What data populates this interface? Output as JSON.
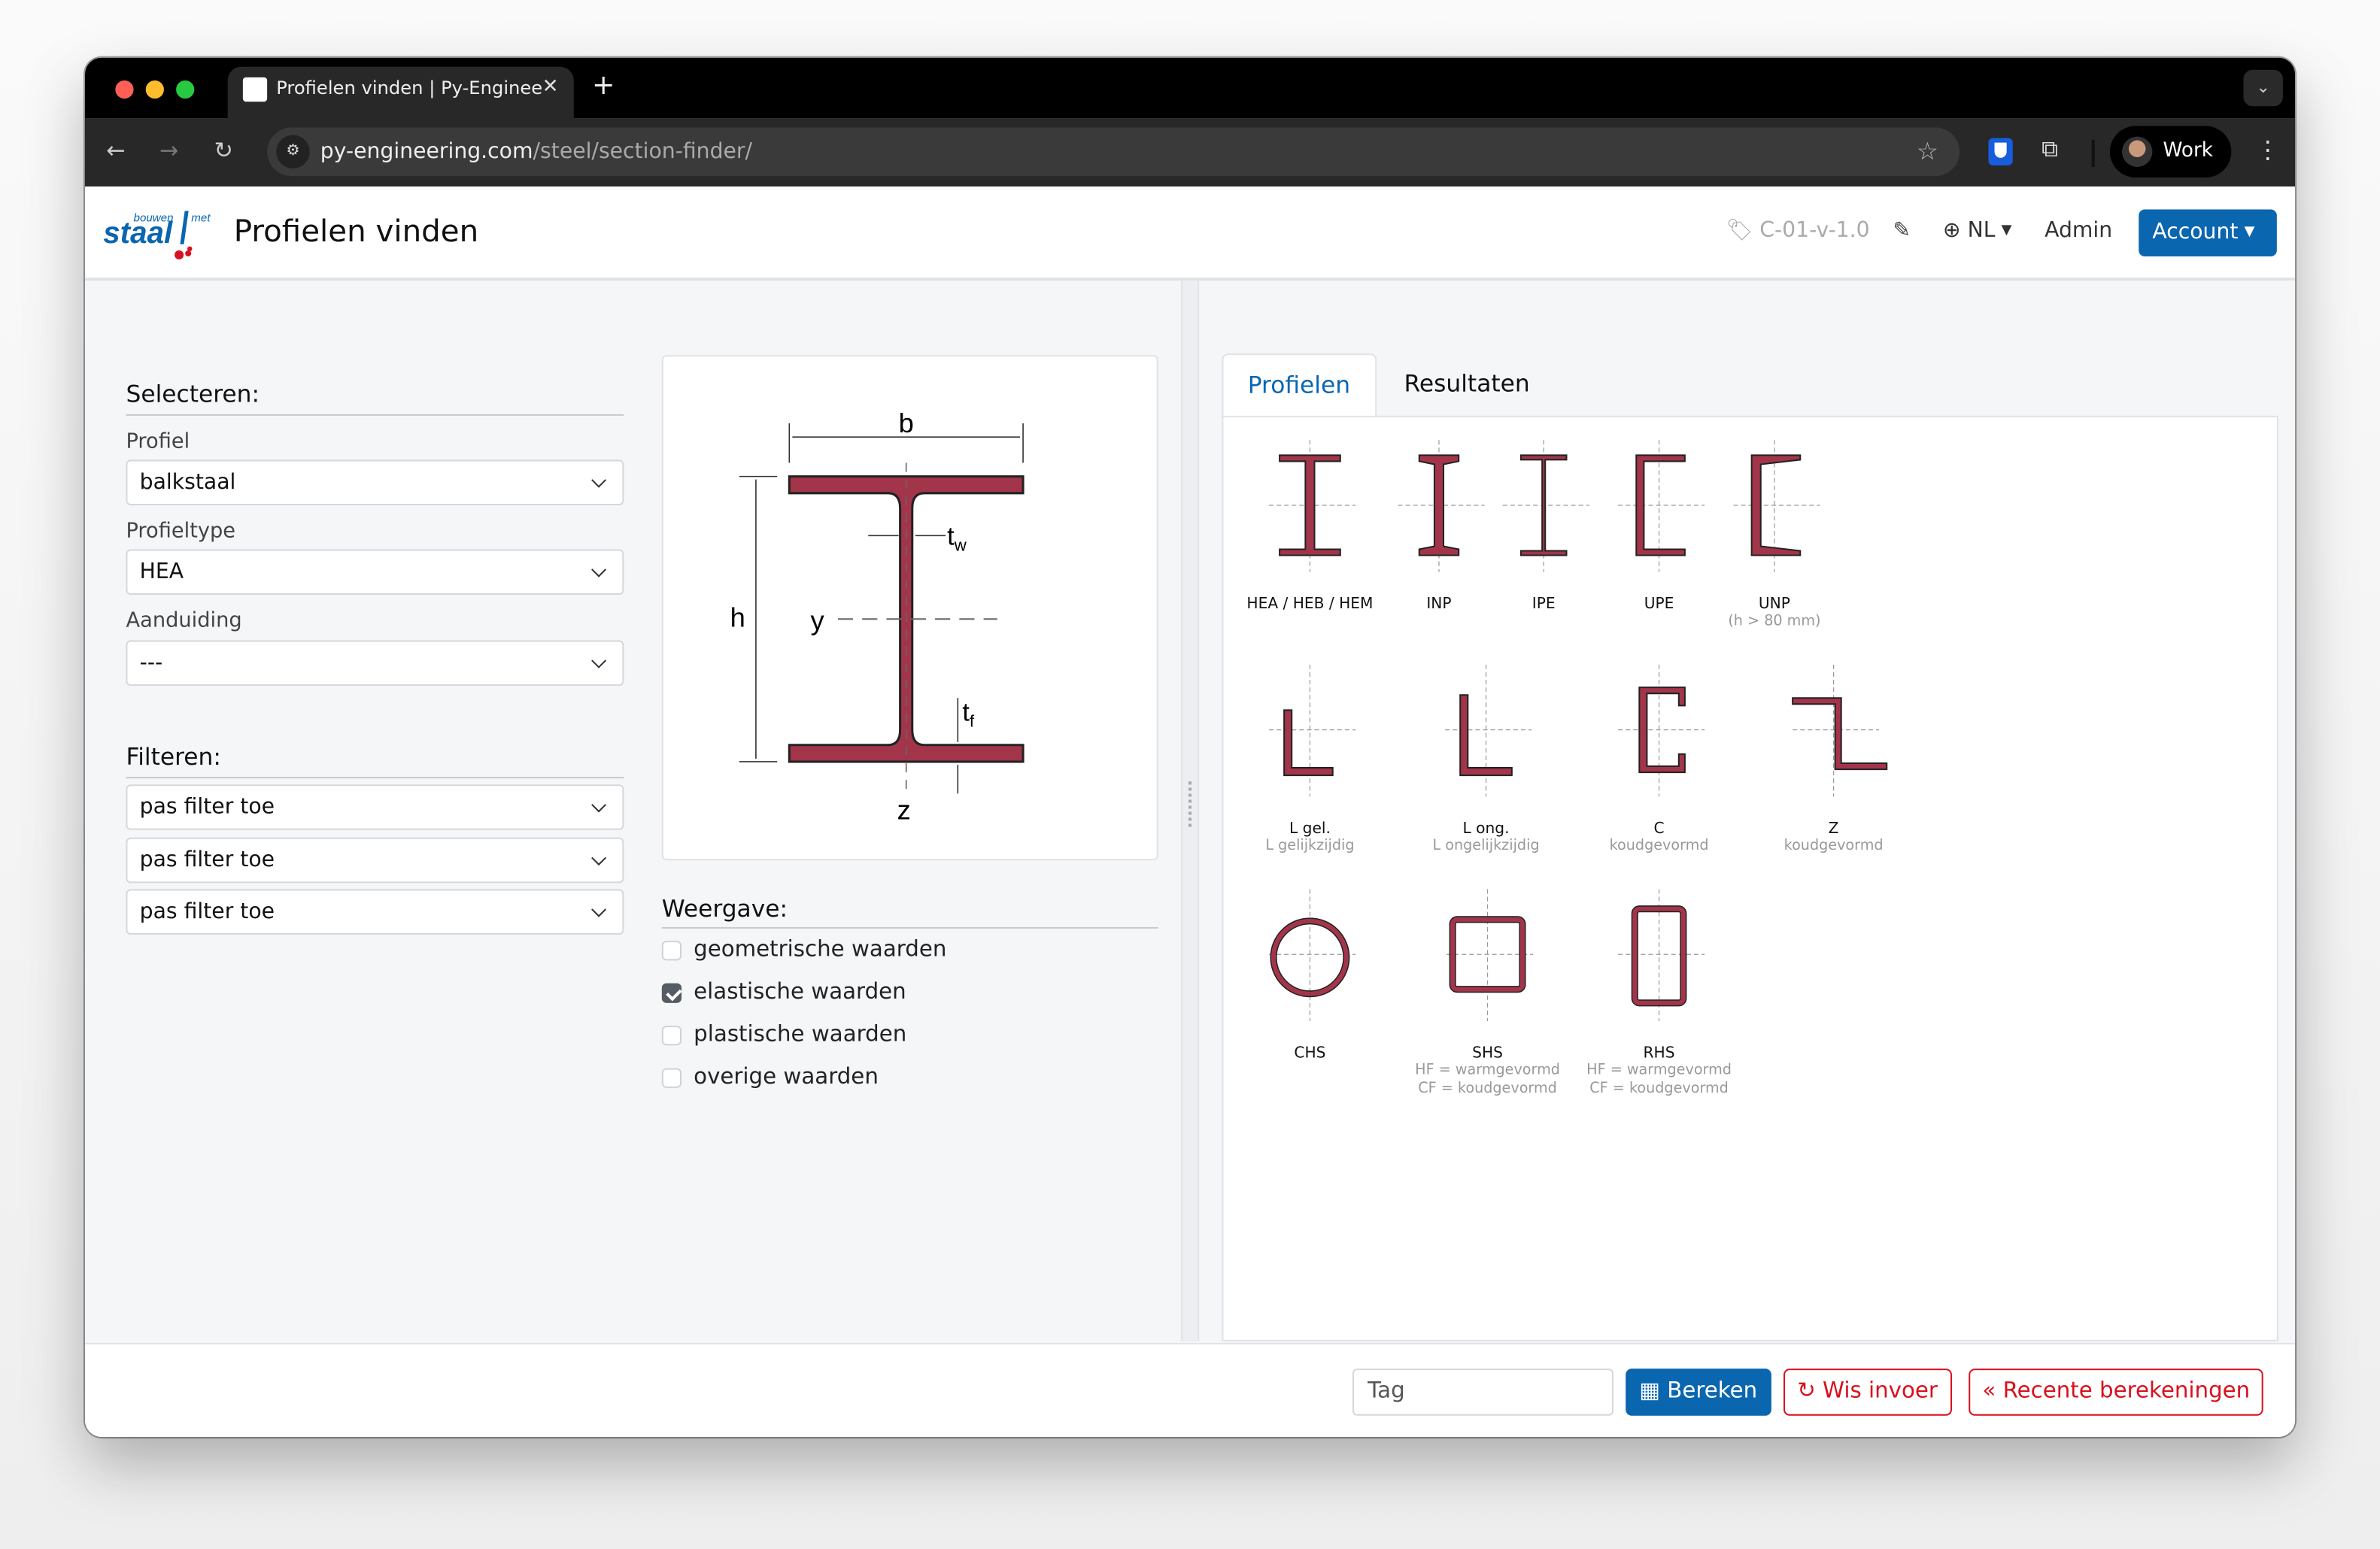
{
  "browser": {
    "tab_title": "Profielen vinden | Py-Enginee",
    "url_host": "py-engineering.com",
    "url_path": "/steel/section-finder/",
    "profile": "Work"
  },
  "header": {
    "logo_text": "bouwen met staal",
    "title": "Profielen vinden",
    "version": "C-01-v-1.0",
    "language": "NL",
    "admin": "Admin",
    "account": "Account"
  },
  "select_section": {
    "heading": "Selecteren:",
    "fields": [
      {
        "label": "Profiel",
        "value": "balkstaal"
      },
      {
        "label": "Profieltype",
        "value": "HEA"
      },
      {
        "label": "Aanduiding",
        "value": "---"
      }
    ]
  },
  "filter_section": {
    "heading": "Filteren:",
    "filters": [
      "pas filter toe",
      "pas filter toe",
      "pas filter toe"
    ]
  },
  "diagram": {
    "b": "b",
    "h": "h",
    "y": "y",
    "z": "z",
    "tw": "t",
    "tw_sub": "w",
    "tf": "t",
    "tf_sub": "f",
    "color": "#a3354a"
  },
  "display": {
    "heading": "Weergave:",
    "options": [
      {
        "label": "geometrische waarden",
        "checked": false
      },
      {
        "label": "elastische waarden",
        "checked": true
      },
      {
        "label": "plastische waarden",
        "checked": false
      },
      {
        "label": "overige waarden",
        "checked": false
      }
    ]
  },
  "tabs": [
    "Profielen",
    "Resultaten"
  ],
  "profiles": [
    {
      "name": "HEA / HEB / HEM",
      "sub": ""
    },
    {
      "name": "INP",
      "sub": ""
    },
    {
      "name": "IPE",
      "sub": ""
    },
    {
      "name": "UPE",
      "sub": ""
    },
    {
      "name": "UNP",
      "sub": "(h > 80 mm)"
    },
    {
      "name": "L gel.",
      "sub": "L gelijkzijdig"
    },
    {
      "name": "L ong.",
      "sub": "L ongelijkzijdig"
    },
    {
      "name": "C",
      "sub": "koudgevormd"
    },
    {
      "name": "Z",
      "sub": "koudgevormd"
    },
    {
      "name": "CHS",
      "sub": ""
    },
    {
      "name": "SHS",
      "sub": "HF = warmgevormd",
      "sub2": "CF = koudgevormd"
    },
    {
      "name": "RHS",
      "sub": "HF = warmgevormd",
      "sub2": "CF = koudgevormd"
    }
  ],
  "footer": {
    "tag_placeholder": "Tag",
    "calc": "Bereken",
    "clear": "Wis invoer",
    "recent": "Recente berekeningen"
  },
  "colors": {
    "primary": "#0b66b0",
    "danger": "#d9101e",
    "profile_fill": "#a3354a"
  }
}
